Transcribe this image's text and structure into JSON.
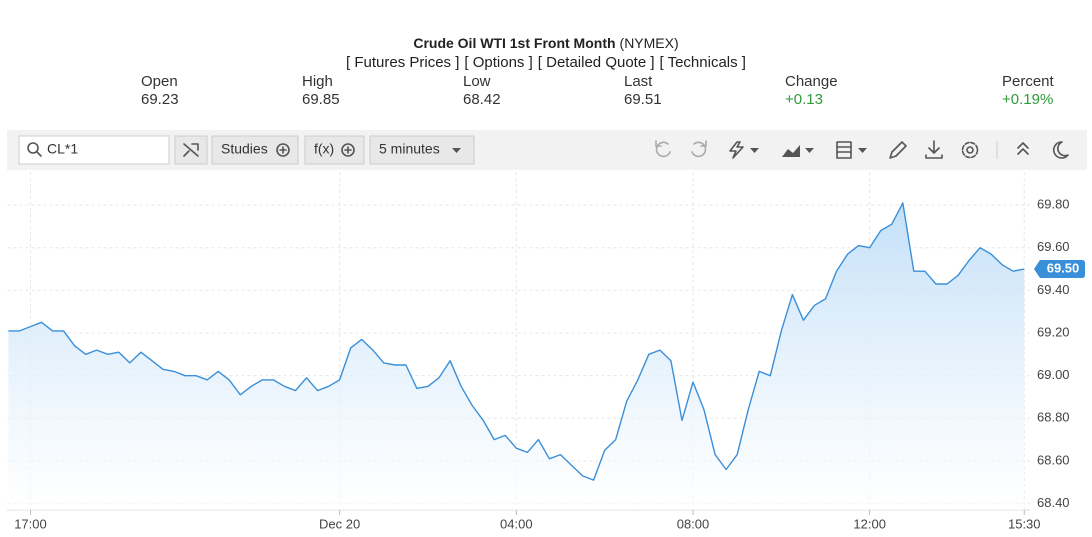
{
  "header": {
    "title": "Crude Oil WTI 1st Front Month",
    "exchange": "(NYMEX)",
    "links": [
      "[ Futures Prices ]",
      "[ Options ]",
      "[ Detailed Quote ]",
      "[ Technicals ]"
    ]
  },
  "quote": [
    {
      "label": "Open",
      "value": 69.23
    },
    {
      "label": "High",
      "value": 69.85
    },
    {
      "label": "Low",
      "value": 68.42
    },
    {
      "label": "Last",
      "value": 69.51
    },
    {
      "label": "Change",
      "value": "+0.13"
    },
    {
      "label": "Percent",
      "value": "+0.19%"
    }
  ],
  "toolbar": {
    "symbol": "CL*1",
    "studies": "Studies",
    "fx": "f(x)",
    "interval": "5 minutes"
  },
  "chart_data": {
    "type": "area",
    "color": "#3a8fd9",
    "x": [
      -7.5,
      -7.25,
      -7,
      -6.75,
      -6.5,
      -6.25,
      -6,
      -5.75,
      -5.5,
      -5.25,
      -5,
      -4.75,
      -4.5,
      -4.25,
      -4,
      -3.75,
      -3.5,
      -3.25,
      -3,
      -2.75,
      -2.5,
      -2.25,
      -2,
      -1.75,
      -1.5,
      -1.25,
      -1,
      -0.75,
      -0.5,
      -0.25,
      0,
      0.25,
      0.5,
      0.75,
      1,
      1.25,
      1.5,
      1.75,
      2,
      2.25,
      2.5,
      2.75,
      3,
      3.25,
      3.5,
      3.75,
      4,
      4.25,
      4.5,
      4.75,
      5,
      5.25,
      5.5,
      5.75,
      6,
      6.25,
      6.5,
      6.75,
      7,
      7.25,
      7.5,
      7.75,
      8,
      8.25,
      8.5,
      8.75,
      9,
      9.25,
      9.5,
      9.75,
      10,
      10.25,
      10.5,
      10.75,
      11,
      11.25,
      11.5,
      11.75,
      12,
      12.25,
      12.5,
      12.75,
      13,
      13.25,
      13.5,
      13.75,
      14,
      14.25,
      14.5,
      14.75,
      15,
      15.25,
      15.5
    ],
    "values": [
      69.21,
      69.21,
      69.23,
      69.25,
      69.21,
      69.21,
      69.14,
      69.1,
      69.12,
      69.1,
      69.11,
      69.06,
      69.11,
      69.07,
      69.03,
      69.02,
      69.0,
      69.0,
      68.98,
      69.02,
      68.98,
      68.91,
      68.95,
      68.98,
      68.98,
      68.95,
      68.93,
      68.99,
      68.93,
      68.95,
      68.98,
      69.13,
      69.17,
      69.12,
      69.06,
      69.05,
      69.05,
      68.94,
      68.95,
      68.99,
      69.07,
      68.95,
      68.86,
      68.79,
      68.7,
      68.72,
      68.66,
      68.64,
      68.7,
      68.61,
      68.63,
      68.58,
      68.53,
      68.51,
      68.65,
      68.7,
      68.88,
      68.98,
      69.1,
      69.12,
      69.07,
      68.79,
      68.97,
      68.84,
      68.63,
      68.56,
      68.63,
      68.84,
      69.02,
      69.0,
      69.21,
      69.38,
      69.26,
      69.33,
      69.36,
      69.49,
      69.57,
      69.61,
      69.6,
      69.68,
      69.71,
      69.81,
      69.49,
      69.49,
      69.43,
      69.43,
      69.47,
      69.54,
      69.6,
      69.57,
      69.52,
      69.49,
      69.5
    ],
    "xlim": [
      -7.52,
      15.63
    ],
    "ylim": [
      68.37,
      69.955
    ],
    "xticks": [
      {
        "value": -7,
        "label": "17:00"
      },
      {
        "value": 0,
        "label": "Dec 20"
      },
      {
        "value": 4,
        "label": "04:00"
      },
      {
        "value": 8,
        "label": "08:00"
      },
      {
        "value": 12,
        "label": "12:00"
      },
      {
        "value": 15.5,
        "label": "15:30"
      }
    ],
    "yticks": [
      {
        "value": 68.4,
        "label": "68.40"
      },
      {
        "value": 68.6,
        "label": "68.60"
      },
      {
        "value": 68.8,
        "label": "68.80"
      },
      {
        "value": 69,
        "label": "69.00"
      },
      {
        "value": 69.2,
        "label": "69.20"
      },
      {
        "value": 69.4,
        "label": "69.40"
      },
      {
        "value": 69.6,
        "label": "69.60"
      },
      {
        "value": 69.8,
        "label": "69.80"
      }
    ],
    "last": {
      "value": 69.5,
      "label": "69.50"
    },
    "grid": true
  }
}
